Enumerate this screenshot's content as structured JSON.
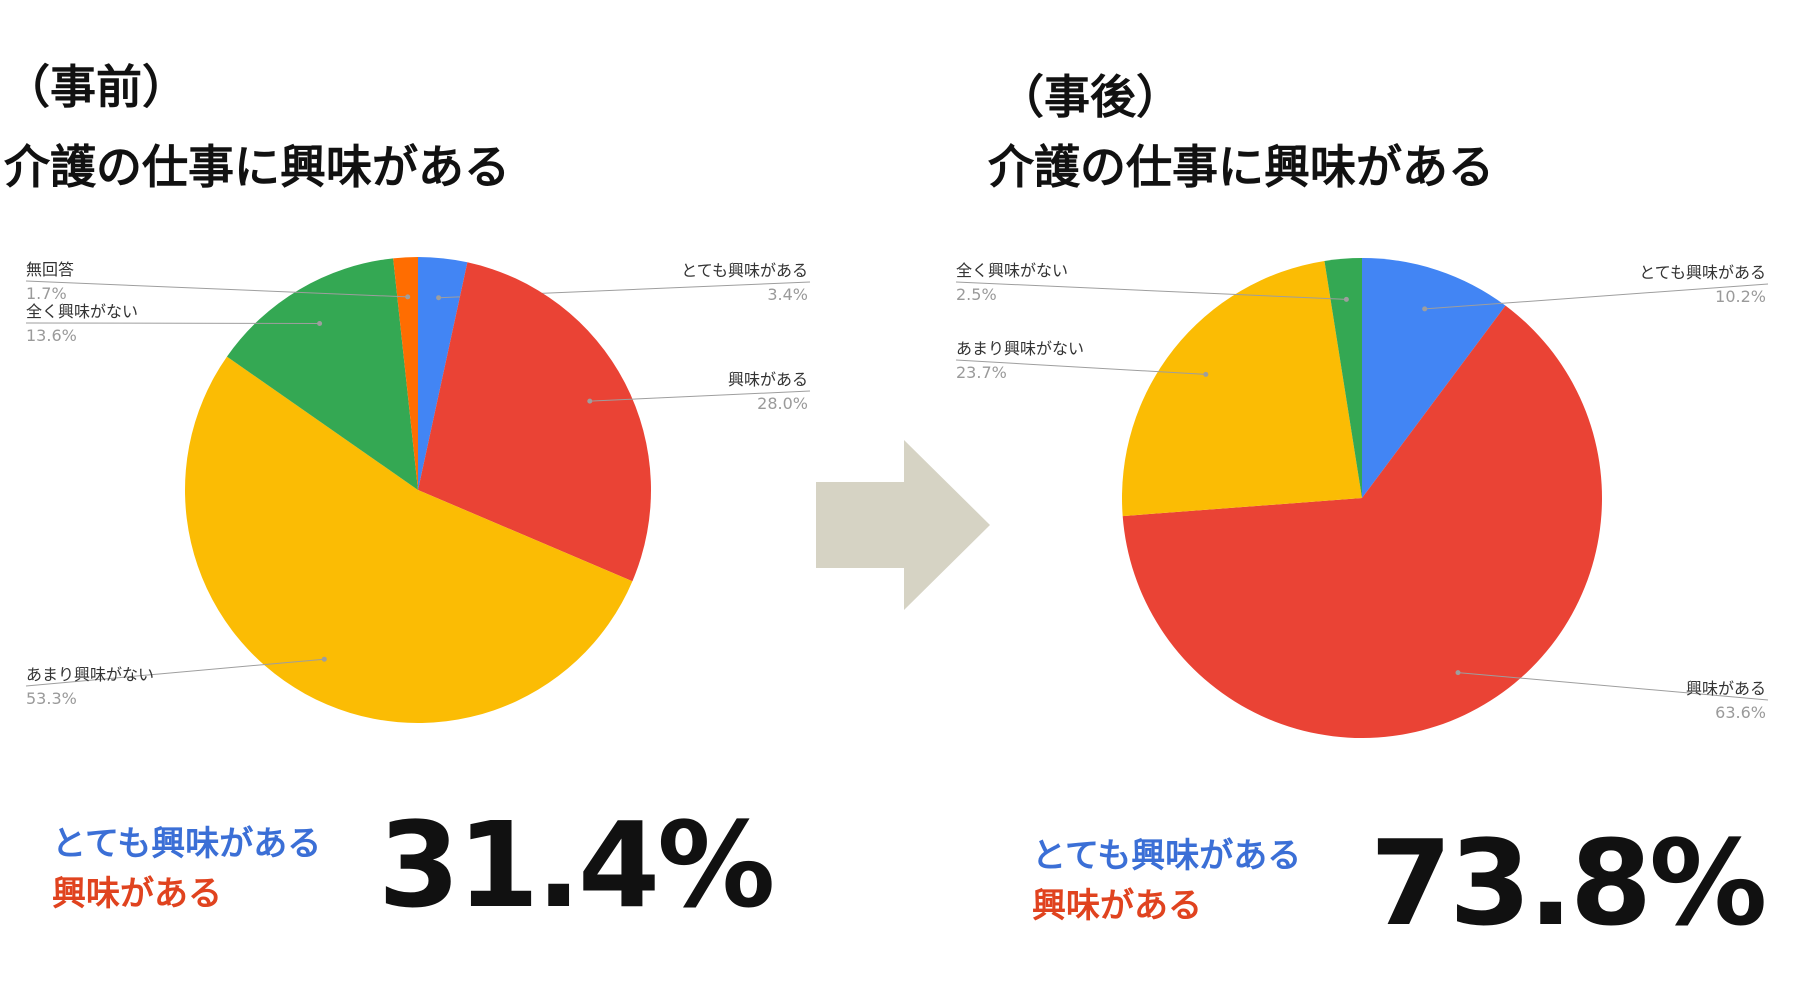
{
  "colors": {
    "blue": "#4285f4",
    "red": "#ea4335",
    "yellow": "#fbbc04",
    "green": "#34a853",
    "orange": "#ff6d01",
    "arrow": "#d6d3c4",
    "summary_blue": "#3b6fd6",
    "summary_red": "#e0431f"
  },
  "left": {
    "title_line1": "（事前）",
    "title_line2": "介護の仕事に興味がある",
    "summary_line1": "とても興味がある",
    "summary_line2": "興味がある",
    "big_value": "31.4%"
  },
  "right": {
    "title_line1": "（事後）",
    "title_line2": "介護の仕事に興味がある",
    "summary_line1": "とても興味がある",
    "summary_line2": "興味がある",
    "big_value": "73.8%"
  },
  "chart_data": [
    {
      "type": "pie",
      "slices": [
        {
          "label": "とても興味がある",
          "value": 3.4,
          "display": "3.4%",
          "color": "#4285f4"
        },
        {
          "label": "興味がある",
          "value": 28.0,
          "display": "28.0%",
          "color": "#ea4335"
        },
        {
          "label": "あまり興味がない",
          "value": 53.3,
          "display": "53.3%",
          "color": "#fbbc04"
        },
        {
          "label": "全く興味がない",
          "value": 13.6,
          "display": "13.6%",
          "color": "#34a853"
        },
        {
          "label": "無回答",
          "value": 1.7,
          "display": "1.7%",
          "color": "#ff6d01"
        }
      ]
    },
    {
      "type": "pie",
      "slices": [
        {
          "label": "とても興味がある",
          "value": 10.2,
          "display": "10.2%",
          "color": "#4285f4"
        },
        {
          "label": "興味がある",
          "value": 63.6,
          "display": "63.6%",
          "color": "#ea4335"
        },
        {
          "label": "あまり興味がない",
          "value": 23.7,
          "display": "23.7%",
          "color": "#fbbc04"
        },
        {
          "label": "全く興味がない",
          "value": 2.5,
          "display": "2.5%",
          "color": "#34a853"
        }
      ]
    }
  ]
}
